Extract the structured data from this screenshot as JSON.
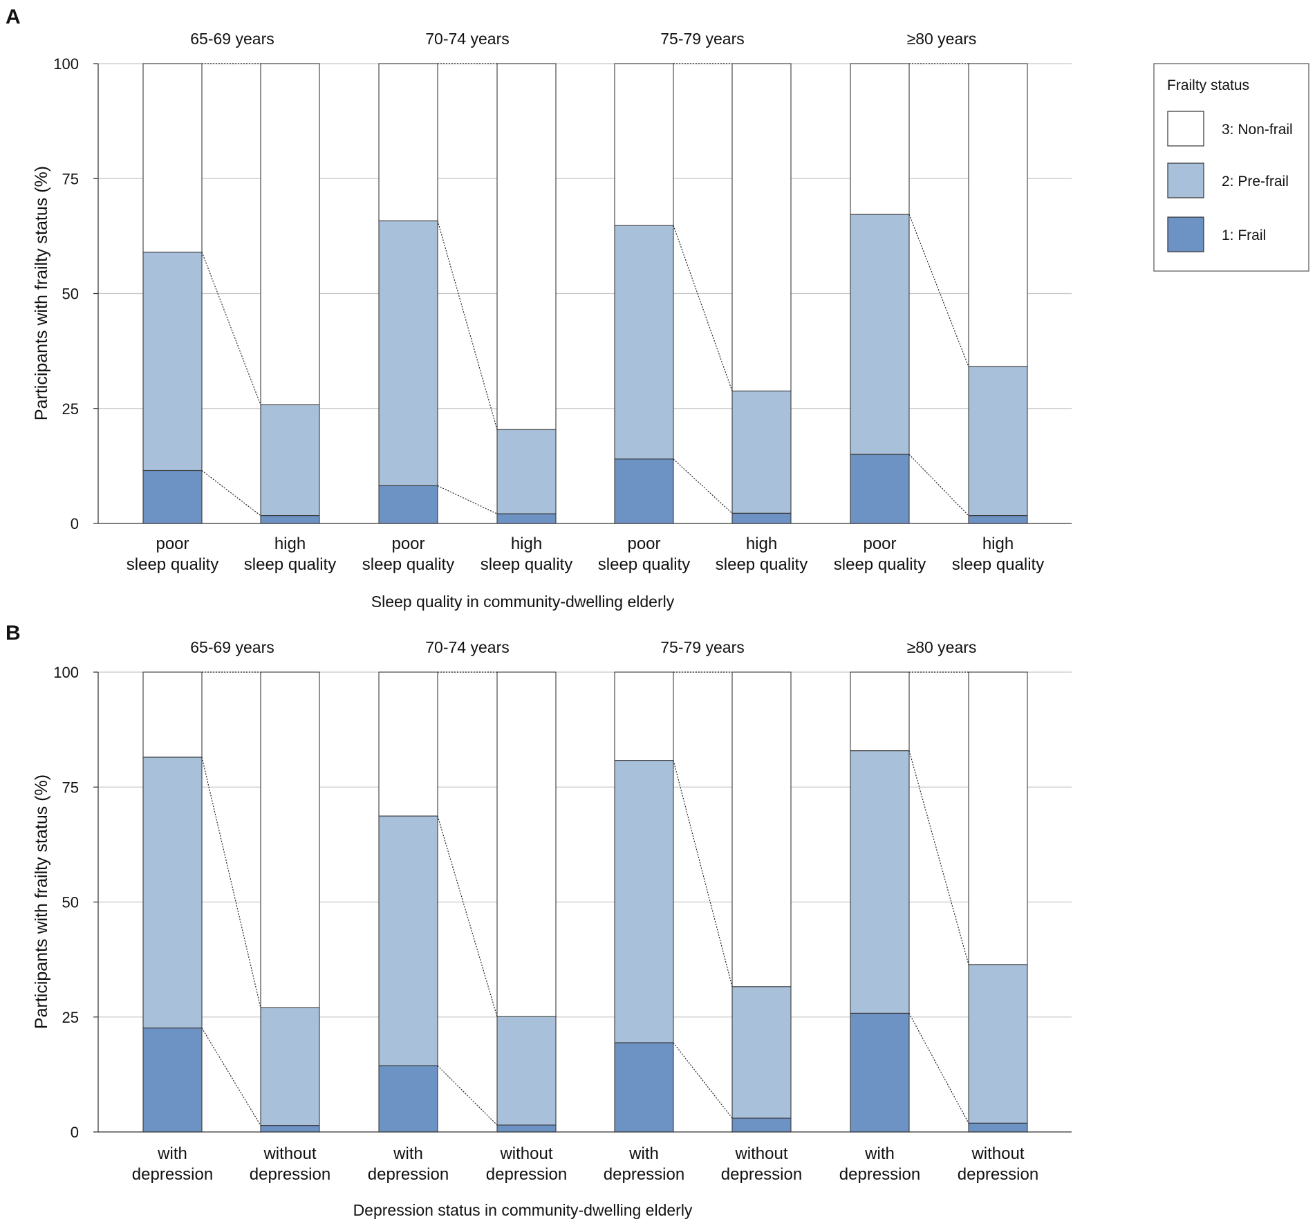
{
  "chart_data": [
    {
      "panel": "A",
      "type": "stacked-bar",
      "ylabel": "Participants with frailty status (%)",
      "xlabel": "Sleep quality in community-dwelling elderly",
      "ylim": [
        0,
        100
      ],
      "yticks": [
        "0",
        "25",
        "50",
        "75",
        "100"
      ],
      "groups": [
        "65-69 years",
        "70-74 years",
        "75-79 years",
        "≥80  years"
      ],
      "bars": [
        {
          "group": 0,
          "label": [
            "poor",
            "sleep quality"
          ],
          "frail": 11.5,
          "prefrail": 47.5
        },
        {
          "group": 0,
          "label": [
            "high",
            "sleep quality"
          ],
          "frail": 1.7,
          "prefrail": 24.1
        },
        {
          "group": 1,
          "label": [
            "poor",
            "sleep quality"
          ],
          "frail": 8.2,
          "prefrail": 57.6
        },
        {
          "group": 1,
          "label": [
            "high",
            "sleep quality"
          ],
          "frail": 2.1,
          "prefrail": 18.3
        },
        {
          "group": 2,
          "label": [
            "poor",
            "sleep quality"
          ],
          "frail": 14.0,
          "prefrail": 50.8
        },
        {
          "group": 2,
          "label": [
            "high",
            "sleep quality"
          ],
          "frail": 2.2,
          "prefrail": 26.6
        },
        {
          "group": 3,
          "label": [
            "poor",
            "sleep quality"
          ],
          "frail": 15.0,
          "prefrail": 52.2
        },
        {
          "group": 3,
          "label": [
            "high",
            "sleep quality"
          ],
          "frail": 1.7,
          "prefrail": 32.4
        }
      ]
    },
    {
      "panel": "B",
      "type": "stacked-bar",
      "ylabel": "Participants with frailty status (%)",
      "xlabel": "Depression status in community-dwelling elderly",
      "ylim": [
        0,
        100
      ],
      "yticks": [
        "0",
        "25",
        "50",
        "75",
        "100"
      ],
      "groups": [
        "65-69 years",
        "70-74 years",
        "75-79 years",
        "≥80  years"
      ],
      "bars": [
        {
          "group": 0,
          "label": [
            "with",
            "depression"
          ],
          "frail": 22.6,
          "prefrail": 58.9
        },
        {
          "group": 0,
          "label": [
            "without",
            "depression"
          ],
          "frail": 1.4,
          "prefrail": 25.6
        },
        {
          "group": 1,
          "label": [
            "with",
            "depression"
          ],
          "frail": 14.4,
          "prefrail": 54.3
        },
        {
          "group": 1,
          "label": [
            "without",
            "depression"
          ],
          "frail": 1.5,
          "prefrail": 23.6
        },
        {
          "group": 2,
          "label": [
            "with",
            "depression"
          ],
          "frail": 19.4,
          "prefrail": 61.4
        },
        {
          "group": 2,
          "label": [
            "without",
            "depression"
          ],
          "frail": 3.0,
          "prefrail": 28.6
        },
        {
          "group": 3,
          "label": [
            "with",
            "depression"
          ],
          "frail": 25.8,
          "prefrail": 57.1
        },
        {
          "group": 3,
          "label": [
            "without",
            "depression"
          ],
          "frail": 1.9,
          "prefrail": 34.5
        }
      ]
    }
  ],
  "legend": {
    "title": "Frailty status",
    "items": [
      {
        "label": "3: Non-frail",
        "color": "#ffffff"
      },
      {
        "label": "2: Pre-frail",
        "color": "#a8c0d9"
      },
      {
        "label": "1: Frail",
        "color": "#6d92c4"
      }
    ]
  },
  "colors": {
    "frail": "#6d92c4",
    "prefrail": "#a8c0d9",
    "nonfrail": "#ffffff",
    "grid": "#c8c8c8",
    "border": "#3a3a3a"
  }
}
